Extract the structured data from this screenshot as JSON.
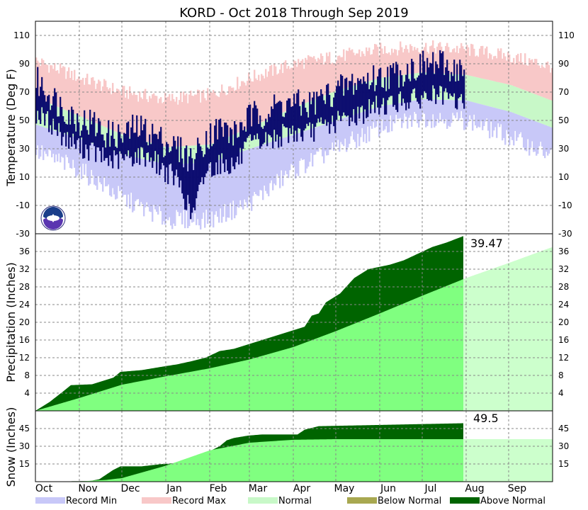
{
  "chart_data": {
    "type": "area",
    "title": "KORD - Oct 2018 Through Sep 2019",
    "months": [
      "Oct",
      "Nov",
      "Dec",
      "Jan",
      "Feb",
      "Mar",
      "Apr",
      "May",
      "Jun",
      "Jul",
      "Aug",
      "Sep"
    ],
    "legend": [
      {
        "label": "Record Min",
        "color": "#c8c8f8"
      },
      {
        "label": "Record Max",
        "color": "#f8c8c8"
      },
      {
        "label": "Normal",
        "color": "#c8f8c8"
      },
      {
        "label": "Below Normal",
        "color": "#a8a850"
      },
      {
        "label": "Above Normal",
        "color": "#006400"
      }
    ],
    "temperature": {
      "ylabel": "Temperature (Deg F)",
      "ylim": [
        -30,
        120
      ],
      "ticks": [
        -30,
        -10,
        10,
        30,
        50,
        70,
        90,
        110
      ],
      "normal_high": [
        [
          0,
          66
        ],
        [
          31,
          53
        ],
        [
          61,
          40
        ],
        [
          92,
          31
        ],
        [
          123,
          33
        ],
        [
          151,
          45
        ],
        [
          182,
          59
        ],
        [
          212,
          71
        ],
        [
          243,
          80
        ],
        [
          273,
          84
        ],
        [
          304,
          82
        ],
        [
          335,
          75
        ],
        [
          364,
          64
        ]
      ],
      "normal_low": [
        [
          0,
          47
        ],
        [
          31,
          37
        ],
        [
          61,
          26
        ],
        [
          92,
          19
        ],
        [
          123,
          20
        ],
        [
          151,
          30
        ],
        [
          182,
          40
        ],
        [
          212,
          50
        ],
        [
          243,
          60
        ],
        [
          273,
          65
        ],
        [
          304,
          64
        ],
        [
          335,
          56
        ],
        [
          364,
          45
        ]
      ],
      "record_max": [
        [
          0,
          92
        ],
        [
          31,
          80
        ],
        [
          61,
          70
        ],
        [
          92,
          65
        ],
        [
          123,
          68
        ],
        [
          151,
          80
        ],
        [
          182,
          90
        ],
        [
          212,
          95
        ],
        [
          243,
          100
        ],
        [
          273,
          102
        ],
        [
          304,
          100
        ],
        [
          335,
          95
        ],
        [
          364,
          88
        ]
      ],
      "record_min": [
        [
          0,
          28
        ],
        [
          31,
          15
        ],
        [
          61,
          -5
        ],
        [
          92,
          -20
        ],
        [
          123,
          -20
        ],
        [
          151,
          -8
        ],
        [
          182,
          15
        ],
        [
          212,
          30
        ],
        [
          243,
          45
        ],
        [
          273,
          52
        ],
        [
          304,
          50
        ],
        [
          335,
          38
        ],
        [
          364,
          25
        ]
      ],
      "observed_end_day": 302,
      "observed_high": [
        [
          0,
          78
        ],
        [
          10,
          68
        ],
        [
          20,
          58
        ],
        [
          30,
          50
        ],
        [
          40,
          48
        ],
        [
          50,
          40
        ],
        [
          60,
          38
        ],
        [
          70,
          45
        ],
        [
          80,
          42
        ],
        [
          90,
          35
        ],
        [
          100,
          30
        ],
        [
          110,
          22
        ],
        [
          120,
          38
        ],
        [
          130,
          45
        ],
        [
          140,
          40
        ],
        [
          150,
          52
        ],
        [
          160,
          55
        ],
        [
          170,
          60
        ],
        [
          180,
          62
        ],
        [
          190,
          60
        ],
        [
          200,
          65
        ],
        [
          210,
          70
        ],
        [
          220,
          75
        ],
        [
          230,
          78
        ],
        [
          240,
          80
        ],
        [
          250,
          82
        ],
        [
          260,
          85
        ],
        [
          270,
          88
        ],
        [
          280,
          90
        ],
        [
          290,
          88
        ],
        [
          302,
          85
        ]
      ],
      "observed_low": [
        [
          0,
          55
        ],
        [
          10,
          48
        ],
        [
          20,
          38
        ],
        [
          30,
          32
        ],
        [
          40,
          28
        ],
        [
          50,
          22
        ],
        [
          60,
          22
        ],
        [
          70,
          25
        ],
        [
          80,
          25
        ],
        [
          90,
          15
        ],
        [
          100,
          8
        ],
        [
          110,
          -18
        ],
        [
          120,
          15
        ],
        [
          130,
          20
        ],
        [
          140,
          18
        ],
        [
          150,
          32
        ],
        [
          160,
          35
        ],
        [
          170,
          38
        ],
        [
          180,
          42
        ],
        [
          190,
          40
        ],
        [
          200,
          45
        ],
        [
          210,
          48
        ],
        [
          220,
          52
        ],
        [
          230,
          55
        ],
        [
          240,
          60
        ],
        [
          250,
          62
        ],
        [
          260,
          64
        ],
        [
          270,
          65
        ],
        [
          280,
          68
        ],
        [
          290,
          65
        ],
        [
          302,
          62
        ]
      ]
    },
    "precipitation": {
      "ylabel": "Precipitation (Inches)",
      "ylim": [
        0,
        40
      ],
      "ticks": [
        4,
        8,
        12,
        16,
        20,
        24,
        28,
        32,
        36
      ],
      "total_label": "39.47",
      "normal": [
        [
          0,
          0
        ],
        [
          31,
          2.9
        ],
        [
          61,
          5.9
        ],
        [
          92,
          7.8
        ],
        [
          123,
          9.6
        ],
        [
          151,
          11.6
        ],
        [
          182,
          14.4
        ],
        [
          212,
          18.0
        ],
        [
          243,
          22.0
        ],
        [
          273,
          26.0
        ],
        [
          304,
          30.0
        ],
        [
          335,
          33.5
        ],
        [
          364,
          36.9
        ]
      ],
      "observed": [
        [
          0,
          0
        ],
        [
          5,
          1.0
        ],
        [
          10,
          2.0
        ],
        [
          20,
          4.5
        ],
        [
          25,
          5.8
        ],
        [
          40,
          6.0
        ],
        [
          55,
          7.5
        ],
        [
          60,
          8.8
        ],
        [
          75,
          9.2
        ],
        [
          90,
          10.0
        ],
        [
          100,
          10.5
        ],
        [
          110,
          11.2
        ],
        [
          120,
          12.0
        ],
        [
          130,
          13.5
        ],
        [
          140,
          14.0
        ],
        [
          150,
          15.0
        ],
        [
          160,
          16.0
        ],
        [
          170,
          17.0
        ],
        [
          180,
          18.0
        ],
        [
          190,
          19.0
        ],
        [
          195,
          21.5
        ],
        [
          200,
          22.0
        ],
        [
          205,
          24.5
        ],
        [
          215,
          26.5
        ],
        [
          225,
          30.0
        ],
        [
          235,
          32.0
        ],
        [
          250,
          33.0
        ],
        [
          260,
          34.0
        ],
        [
          270,
          35.5
        ],
        [
          280,
          37.0
        ],
        [
          290,
          38.0
        ],
        [
          302,
          39.47
        ]
      ]
    },
    "snow": {
      "ylabel": "Snow (Inches)",
      "ylim": [
        0,
        60
      ],
      "ticks": [
        15,
        30,
        45
      ],
      "total_label": "49.5",
      "normal": [
        [
          0,
          0
        ],
        [
          31,
          0.2
        ],
        [
          50,
          1.5
        ],
        [
          61,
          3.0
        ],
        [
          92,
          13.5
        ],
        [
          123,
          26.5
        ],
        [
          151,
          33.0
        ],
        [
          182,
          35.5
        ],
        [
          212,
          36.0
        ],
        [
          243,
          36.0
        ],
        [
          364,
          36.0
        ]
      ],
      "observed": [
        [
          0,
          0
        ],
        [
          38,
          0.5
        ],
        [
          45,
          2
        ],
        [
          50,
          6
        ],
        [
          55,
          10
        ],
        [
          60,
          13
        ],
        [
          75,
          13
        ],
        [
          90,
          15
        ],
        [
          115,
          17
        ],
        [
          120,
          24
        ],
        [
          125,
          27
        ],
        [
          130,
          30
        ],
        [
          135,
          35
        ],
        [
          140,
          37
        ],
        [
          150,
          39
        ],
        [
          160,
          40
        ],
        [
          185,
          40
        ],
        [
          190,
          44
        ],
        [
          200,
          47
        ],
        [
          302,
          49.5
        ]
      ]
    }
  }
}
